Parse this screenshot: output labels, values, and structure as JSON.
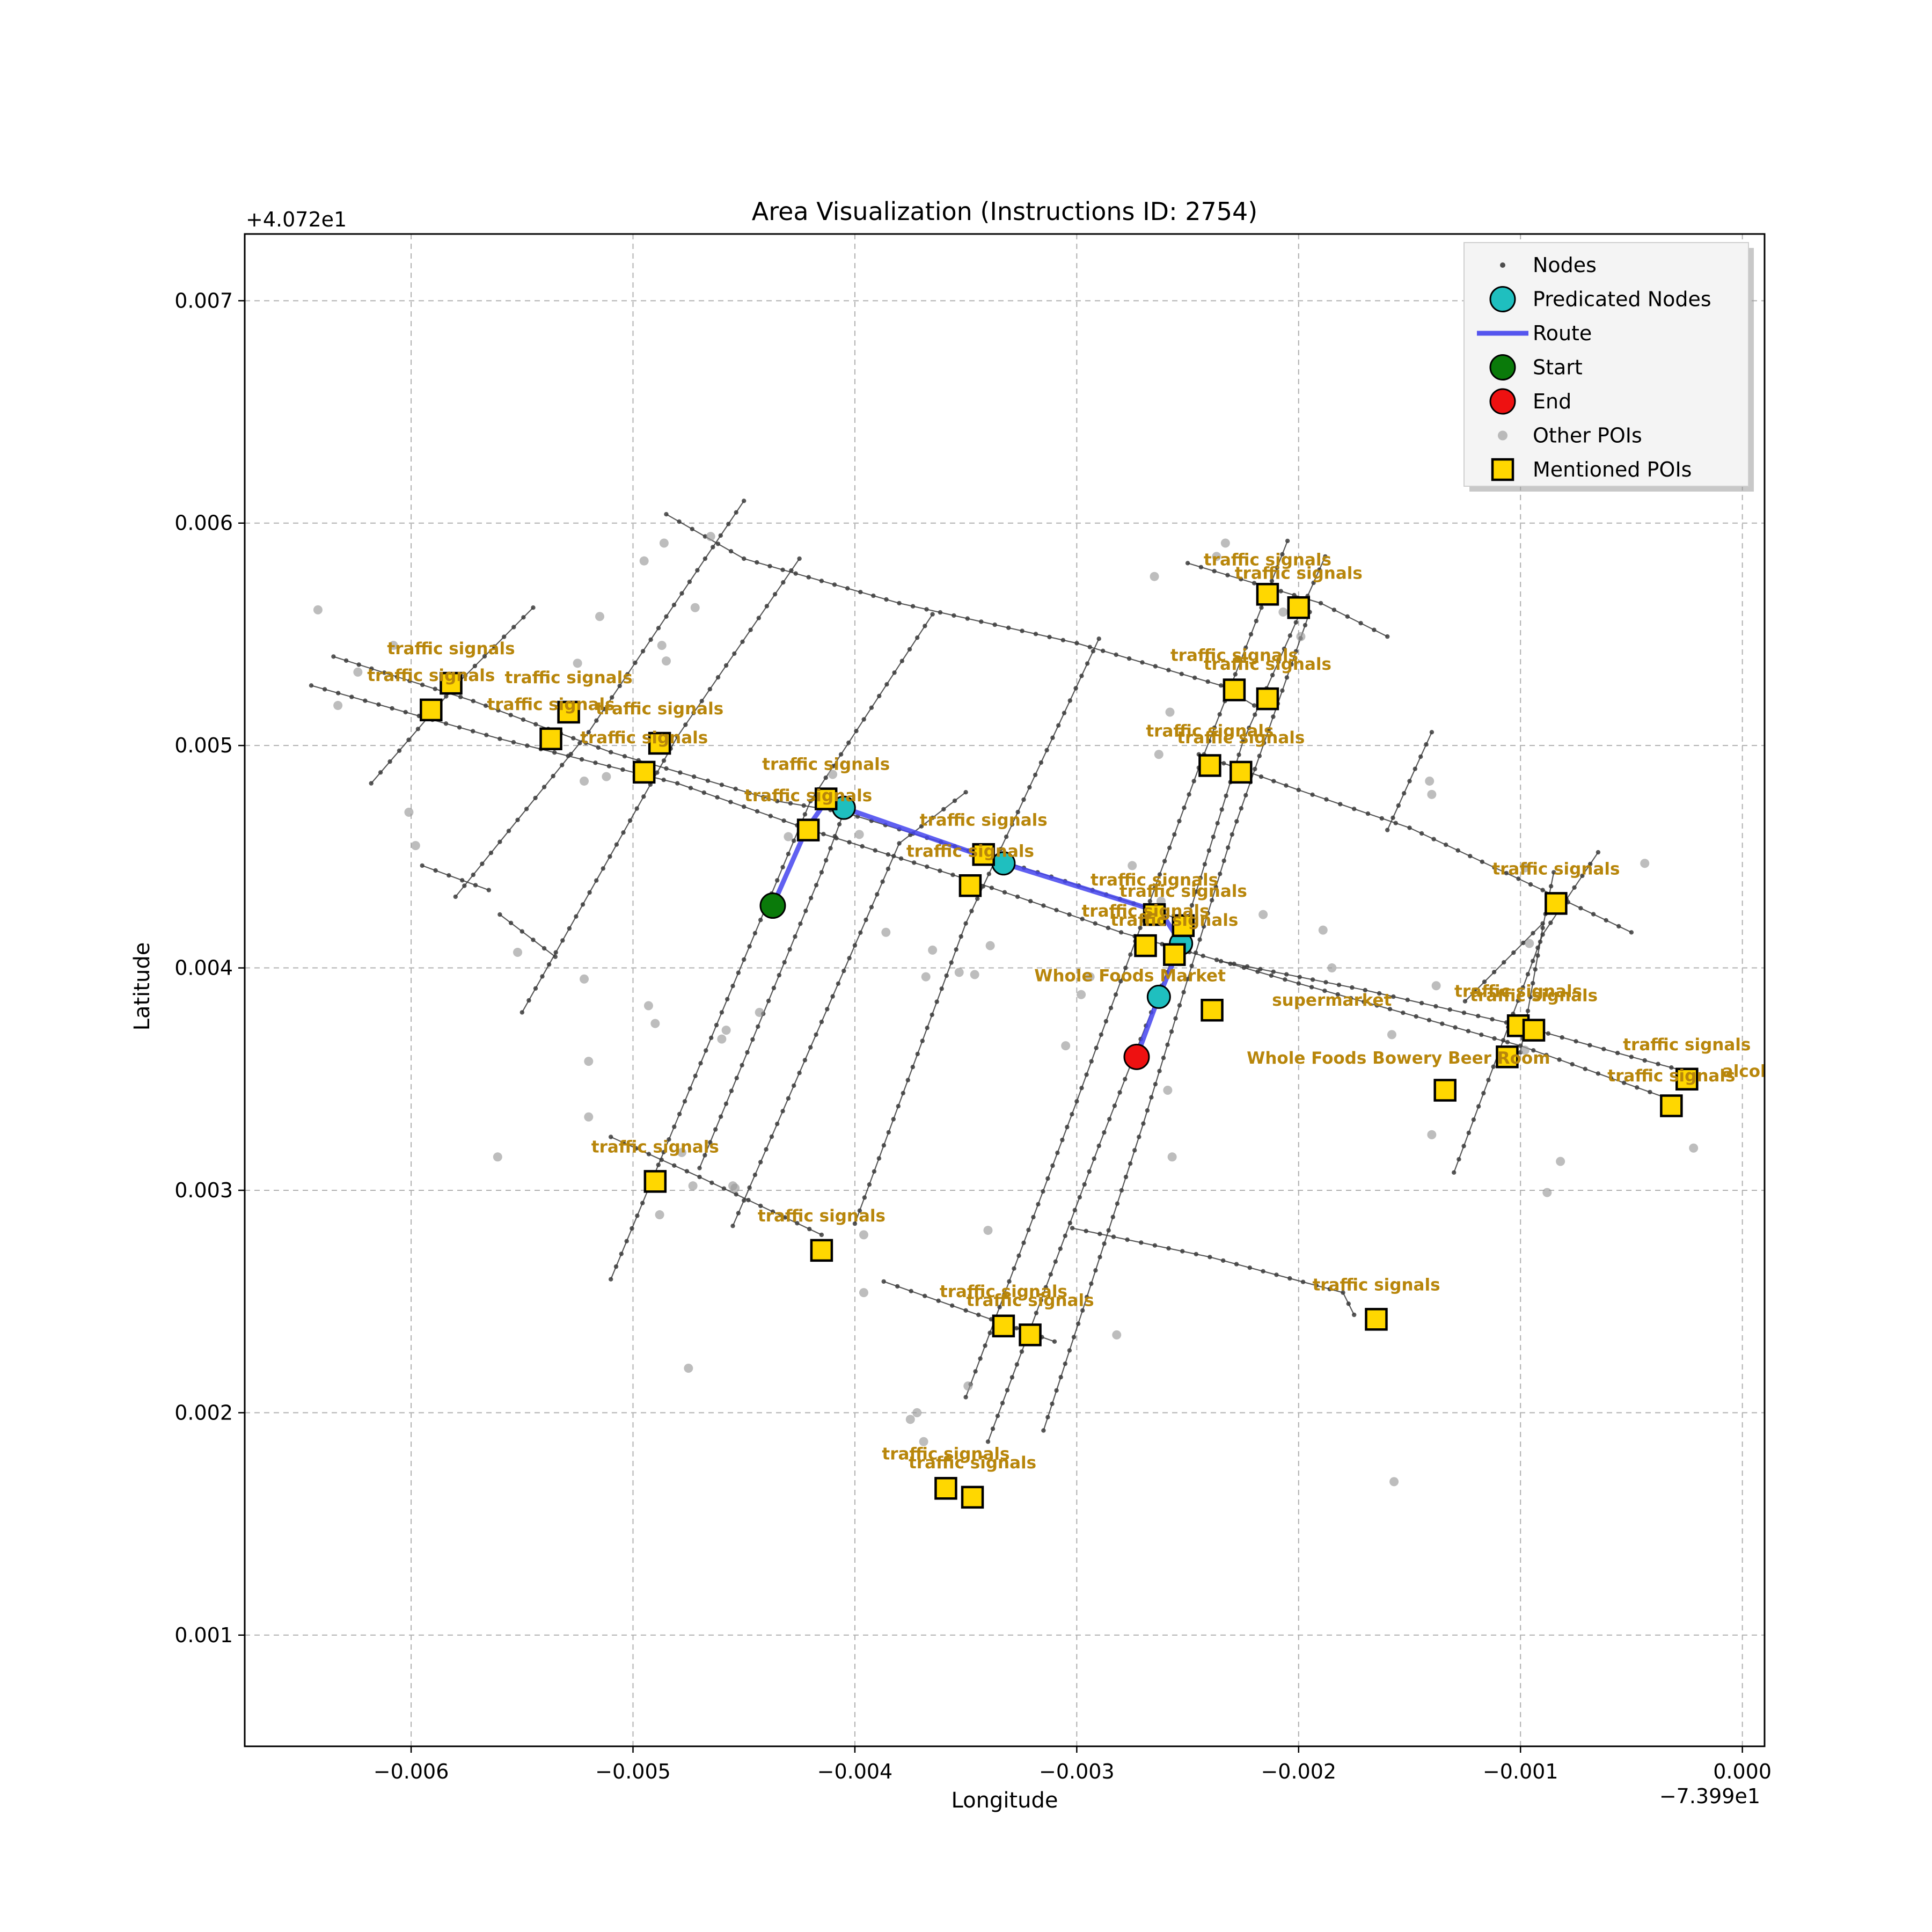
{
  "chart_data": {
    "type": "map",
    "title": "Area Visualization (Instructions ID: 2754)",
    "xlabel": "Longitude",
    "ylabel": "Latitude",
    "x_offset_label": "−7.399e1",
    "y_offset_label": "+4.072e1",
    "xlim": [
      -0.00675,
      0.0001
    ],
    "ylim": [
      0.0005,
      0.0073
    ],
    "x_ticks": [
      -0.006,
      -0.005,
      -0.004,
      -0.003,
      -0.002,
      -0.001,
      0.0
    ],
    "x_tick_labels": [
      "−0.006",
      "−0.005",
      "−0.004",
      "−0.003",
      "−0.002",
      "−0.001",
      "0.000"
    ],
    "y_ticks": [
      0.001,
      0.002,
      0.003,
      0.004,
      0.005,
      0.006,
      0.007
    ],
    "y_tick_labels": [
      "0.001",
      "0.002",
      "0.003",
      "0.004",
      "0.005",
      "0.006",
      "0.007"
    ],
    "grid": true,
    "legend_position": "top-right",
    "legend": [
      {
        "label": "Nodes",
        "marker": "small-dot",
        "color": "#3c3c3c"
      },
      {
        "label": "Predicated Nodes",
        "marker": "circle",
        "color": "#1fbfbf"
      },
      {
        "label": "Route",
        "marker": "line",
        "color": "#4444ee"
      },
      {
        "label": "Start",
        "marker": "circle",
        "color": "#0a7a0a"
      },
      {
        "label": "End",
        "marker": "circle",
        "color": "#ee1111"
      },
      {
        "label": "Other POIs",
        "marker": "small-dot",
        "color": "#9a9a9a"
      },
      {
        "label": "Mentioned POIs",
        "marker": "square",
        "color": "#ffd700"
      }
    ],
    "colors": {
      "nodes": "#3c3c3c",
      "predicated": "#1fbfbf",
      "route": "#4444ee",
      "start": "#0a7a0a",
      "end": "#ee1111",
      "other_poi": "#9a9a9a",
      "mentioned_poi": "#ffd700",
      "poi_label": "#b8860b"
    },
    "streets": [
      [
        [
          -0.00635,
          0.0054
        ],
        [
          -0.00572,
          0.0052
        ],
        [
          -0.0051,
          0.00497
        ],
        [
          -0.00435,
          0.00475
        ],
        [
          -0.00405,
          0.0047
        ],
        [
          -0.0033,
          0.00447
        ],
        [
          -0.00262,
          0.00425
        ],
        [
          -0.0025,
          0.0042
        ]
      ],
      [
        [
          -0.00645,
          0.00527
        ],
        [
          -0.0056,
          0.00503
        ],
        [
          -0.0048,
          0.00483
        ],
        [
          -0.0042,
          0.00462
        ],
        [
          -0.0035,
          0.0044
        ],
        [
          -0.0028,
          0.00416
        ],
        [
          -0.002,
          0.00393
        ],
        [
          -0.001,
          0.00365
        ],
        [
          -0.0003,
          0.0034
        ]
      ],
      [
        [
          -0.00485,
          0.00604
        ],
        [
          -0.0045,
          0.00584
        ],
        [
          -0.0038,
          0.00564
        ],
        [
          -0.003,
          0.00546
        ],
        [
          -0.00235,
          0.00527
        ],
        [
          -0.0022,
          0.00518
        ]
      ],
      [
        [
          -0.0025,
          0.00582
        ],
        [
          -0.0019,
          0.00564
        ],
        [
          -0.0016,
          0.00549
        ]
      ],
      [
        [
          -0.00245,
          0.00496
        ],
        [
          -0.002,
          0.0048
        ],
        [
          -0.0015,
          0.00463
        ],
        [
          -0.0009,
          0.00435
        ],
        [
          -0.0005,
          0.00416
        ]
      ],
      [
        [
          -0.00235,
          0.00403
        ],
        [
          -0.0017,
          0.0039
        ],
        [
          -0.001,
          0.00374
        ],
        [
          -0.0005,
          0.0036
        ],
        [
          -0.0002,
          0.00352
        ]
      ],
      [
        [
          -0.0051,
          0.00324
        ],
        [
          -0.0047,
          0.00306
        ],
        [
          -0.00415,
          0.0028
        ]
      ],
      [
        [
          -0.00387,
          0.00259
        ],
        [
          -0.0035,
          0.00246
        ],
        [
          -0.0031,
          0.00232
        ]
      ],
      [
        [
          -0.00302,
          0.00283
        ],
        [
          -0.0024,
          0.0027
        ],
        [
          -0.0018,
          0.00254
        ],
        [
          -0.00175,
          0.00244
        ]
      ],
      [
        [
          -0.00618,
          0.00483
        ],
        [
          -0.0058,
          0.00527
        ],
        [
          -0.00545,
          0.00562
        ]
      ],
      [
        [
          -0.00595,
          0.00446
        ],
        [
          -0.00565,
          0.00435
        ]
      ],
      [
        [
          -0.0058,
          0.00432
        ],
        [
          -0.0052,
          0.00506
        ],
        [
          -0.0045,
          0.0061
        ]
      ],
      [
        [
          -0.0056,
          0.00424
        ],
        [
          -0.00535,
          0.00405
        ]
      ],
      [
        [
          -0.0055,
          0.0038
        ],
        [
          -0.0048,
          0.00504
        ],
        [
          -0.00425,
          0.00584
        ]
      ],
      [
        [
          -0.0051,
          0.0026
        ],
        [
          -0.0046,
          0.0038
        ],
        [
          -0.0042,
          0.00475
        ],
        [
          -0.00365,
          0.00559
        ]
      ],
      [
        [
          -0.0047,
          0.0031
        ],
        [
          -0.00415,
          0.00443
        ],
        [
          -0.00405,
          0.0047
        ]
      ],
      [
        [
          -0.00455,
          0.00284
        ],
        [
          -0.0038,
          0.00456
        ],
        [
          -0.0035,
          0.00479
        ]
      ],
      [
        [
          -0.004,
          0.00285
        ],
        [
          -0.0035,
          0.0042
        ],
        [
          -0.0029,
          0.00548
        ]
      ],
      [
        [
          -0.0035,
          0.00207
        ],
        [
          -0.003,
          0.0034
        ],
        [
          -0.00245,
          0.0049
        ],
        [
          -0.00205,
          0.00592
        ]
      ],
      [
        [
          -0.0034,
          0.00187
        ],
        [
          -0.0029,
          0.0032
        ],
        [
          -0.0025,
          0.00422
        ],
        [
          -0.00225,
          0.00502
        ],
        [
          -0.00188,
          0.00585
        ]
      ],
      [
        [
          -0.00315,
          0.00192
        ],
        [
          -0.0027,
          0.0033
        ],
        [
          -0.0023,
          0.0046
        ],
        [
          -0.00195,
          0.0056
        ]
      ],
      [
        [
          -0.0016,
          0.00462
        ],
        [
          -0.0014,
          0.00506
        ]
      ],
      [
        [
          -0.0013,
          0.00308
        ],
        [
          -0.0009,
          0.00415
        ],
        [
          -0.00065,
          0.00452
        ]
      ],
      [
        [
          -0.001,
          0.00362
        ],
        [
          -0.0009,
          0.00418
        ],
        [
          -0.00085,
          0.00443
        ]
      ],
      [
        [
          -0.00125,
          0.00385
        ],
        [
          -0.0009,
          0.0042
        ]
      ]
    ],
    "route": [
      [
        -0.00437,
        0.00428
      ],
      [
        -0.00422,
        0.00462
      ],
      [
        -0.00413,
        0.00475
      ],
      [
        -0.00405,
        0.00472
      ],
      [
        -0.00333,
        0.00447
      ],
      [
        -0.00262,
        0.00425
      ],
      [
        -0.00253,
        0.00411
      ],
      [
        -0.00263,
        0.00387
      ],
      [
        -0.00273,
        0.0036
      ]
    ],
    "start": [
      -0.00437,
      0.00428
    ],
    "end": [
      -0.00273,
      0.0036
    ],
    "predicated_nodes": [
      [
        -0.00405,
        0.00472
      ],
      [
        -0.00333,
        0.00447
      ],
      [
        -0.00253,
        0.00411
      ],
      [
        -0.00263,
        0.00387
      ]
    ],
    "other_pois": [
      [
        -0.00642,
        0.00561
      ],
      [
        -0.00633,
        0.00518
      ],
      [
        -0.00624,
        0.00533
      ],
      [
        -0.00598,
        0.00455
      ],
      [
        -0.00601,
        0.0047
      ],
      [
        -0.00608,
        0.00545
      ],
      [
        -0.00561,
        0.00315
      ],
      [
        -0.00552,
        0.00407
      ],
      [
        -0.00525,
        0.00537
      ],
      [
        -0.00522,
        0.00484
      ],
      [
        -0.00522,
        0.00395
      ],
      [
        -0.0052,
        0.00333
      ],
      [
        -0.0052,
        0.00358
      ],
      [
        -0.00515,
        0.00558
      ],
      [
        -0.00512,
        0.00486
      ],
      [
        -0.00495,
        0.00583
      ],
      [
        -0.00493,
        0.00383
      ],
      [
        -0.0049,
        0.00375
      ],
      [
        -0.00488,
        0.00289
      ],
      [
        -0.00487,
        0.00545
      ],
      [
        -0.00486,
        0.00591
      ],
      [
        -0.00485,
        0.00538
      ],
      [
        -0.00478,
        0.00317
      ],
      [
        -0.00475,
        0.0022
      ],
      [
        -0.00473,
        0.00302
      ],
      [
        -0.00472,
        0.00562
      ],
      [
        -0.00465,
        0.00594
      ],
      [
        -0.0046,
        0.00368
      ],
      [
        -0.00458,
        0.00372
      ],
      [
        -0.00455,
        0.00302
      ],
      [
        -0.00454,
        0.00301
      ],
      [
        -0.00443,
        0.0038
      ],
      [
        -0.0043,
        0.00459
      ],
      [
        -0.0041,
        0.00487
      ],
      [
        -0.00398,
        0.0046
      ],
      [
        -0.00396,
        0.00254
      ],
      [
        -0.00396,
        0.0028
      ],
      [
        -0.00386,
        0.00416
      ],
      [
        -0.00375,
        0.00197
      ],
      [
        -0.00372,
        0.002
      ],
      [
        -0.00369,
        0.00187
      ],
      [
        -0.00368,
        0.00396
      ],
      [
        -0.00365,
        0.00408
      ],
      [
        -0.00353,
        0.00398
      ],
      [
        -0.00349,
        0.00212
      ],
      [
        -0.00346,
        0.00397
      ],
      [
        -0.0034,
        0.00282
      ],
      [
        -0.00339,
        0.0041
      ],
      [
        -0.00305,
        0.00365
      ],
      [
        -0.00298,
        0.00388
      ],
      [
        -0.00294,
        0.00396
      ],
      [
        -0.00282,
        0.00235
      ],
      [
        -0.00275,
        0.00446
      ],
      [
        -0.00259,
        0.00345
      ],
      [
        -0.00257,
        0.00315
      ],
      [
        -0.00258,
        0.00515
      ],
      [
        -0.00263,
        0.00496
      ],
      [
        -0.00265,
        0.00576
      ],
      [
        -0.00262,
        0.0043
      ],
      [
        -0.00237,
        0.00585
      ],
      [
        -0.00233,
        0.00591
      ],
      [
        -0.00216,
        0.00424
      ],
      [
        -0.00207,
        0.0056
      ],
      [
        -0.00199,
        0.00549
      ],
      [
        -0.00189,
        0.00417
      ],
      [
        -0.00185,
        0.004
      ],
      [
        -0.00158,
        0.0037
      ],
      [
        -0.00157,
        0.00169
      ],
      [
        -0.00141,
        0.00484
      ],
      [
        -0.0014,
        0.00478
      ],
      [
        -0.0014,
        0.00325
      ],
      [
        -0.00138,
        0.00392
      ],
      [
        -0.00098,
        0.00363
      ],
      [
        -0.00096,
        0.00411
      ],
      [
        -0.00098,
        0.00445
      ],
      [
        -0.00088,
        0.00299
      ],
      [
        -0.00082,
        0.00313
      ],
      [
        -0.00044,
        0.00447
      ],
      [
        -0.00022,
        0.00319
      ]
    ],
    "mentioned_pois": [
      {
        "x": -0.00582,
        "y": 0.00528,
        "label": "traffic signals",
        "label_dx": 0,
        "label_dy": 0.00013
      },
      {
        "x": -0.00591,
        "y": 0.00516,
        "label": "traffic signals",
        "label_dx": 0,
        "label_dy": 0.00013
      },
      {
        "x": -0.00529,
        "y": 0.00515,
        "label": "traffic signals",
        "label_dx": 0,
        "label_dy": 0.00013
      },
      {
        "x": -0.00537,
        "y": 0.00503,
        "label": "traffic signals",
        "label_dx": 0,
        "label_dy": 0.00013
      },
      {
        "x": -0.00488,
        "y": 0.00501,
        "label": "traffic signals",
        "label_dx": 0,
        "label_dy": 0.00013
      },
      {
        "x": -0.00495,
        "y": 0.00488,
        "label": "traffic signals",
        "label_dx": 0,
        "label_dy": 0.00013
      },
      {
        "x": -0.00413,
        "y": 0.00476,
        "label": "traffic signals",
        "label_dx": 0,
        "label_dy": 0.00013
      },
      {
        "x": -0.00421,
        "y": 0.00462,
        "label": "traffic signals",
        "label_dx": 0,
        "label_dy": 0.00013
      },
      {
        "x": -0.00342,
        "y": 0.00451,
        "label": "traffic signals",
        "label_dx": 0,
        "label_dy": 0.00013
      },
      {
        "x": -0.00348,
        "y": 0.00437,
        "label": "traffic signals",
        "label_dx": 0,
        "label_dy": 0.00013
      },
      {
        "x": -0.00265,
        "y": 0.00424,
        "label": "traffic signals",
        "label_dx": 0,
        "label_dy": 0.00013
      },
      {
        "x": -0.00252,
        "y": 0.00419,
        "label": "traffic signals",
        "label_dx": 0,
        "label_dy": 0.00013
      },
      {
        "x": -0.00269,
        "y": 0.0041,
        "label": "traffic signals",
        "label_dx": 0,
        "label_dy": 0.00013
      },
      {
        "x": -0.00256,
        "y": 0.00406,
        "label": "traffic signals",
        "label_dx": 0,
        "label_dy": 0.00013
      },
      {
        "x": -0.00214,
        "y": 0.00568,
        "label": "traffic signals",
        "label_dx": 0,
        "label_dy": 0.00013
      },
      {
        "x": -0.002,
        "y": 0.00562,
        "label": "traffic signals",
        "label_dx": 0,
        "label_dy": 0.00013
      },
      {
        "x": -0.00229,
        "y": 0.00525,
        "label": "traffic signals",
        "label_dx": 0,
        "label_dy": 0.00013
      },
      {
        "x": -0.00214,
        "y": 0.00521,
        "label": "traffic signals",
        "label_dx": 0,
        "label_dy": 0.00013
      },
      {
        "x": -0.0024,
        "y": 0.00491,
        "label": "traffic signals",
        "label_dx": 0,
        "label_dy": 0.00013
      },
      {
        "x": -0.00226,
        "y": 0.00488,
        "label": "traffic signals",
        "label_dx": 0,
        "label_dy": 0.00013
      },
      {
        "x": -0.00084,
        "y": 0.00429,
        "label": "traffic signals",
        "label_dx": 0,
        "label_dy": 0.00013
      },
      {
        "x": -0.00239,
        "y": 0.00381,
        "label": "Whole Foods Market",
        "label_dx": -0.00037,
        "label_dy": 0.00013
      },
      {
        "x": -0.00134,
        "y": 0.00345,
        "label": "supermarket",
        "label_dx": -0.00051,
        "label_dy": 0.00038
      },
      {
        "x": -0.00106,
        "y": 0.0036,
        "label": "Whole Foods Bowery Beer Room",
        "label_dx": -0.00049,
        "label_dy": -3e-05
      },
      {
        "x": -0.00101,
        "y": 0.00374,
        "label": "traffic signals",
        "label_dx": 0,
        "label_dy": 0.00013
      },
      {
        "x": -0.00094,
        "y": 0.00372,
        "label": "traffic signals",
        "label_dx": 0,
        "label_dy": 0.00013
      },
      {
        "x": -0.00032,
        "y": 0.00338,
        "label": "alcohol",
        "label_dx": 0.00038,
        "label_dy": 0.00013
      },
      {
        "x": -0.00025,
        "y": 0.0035,
        "label": "traffic signals",
        "label_dx": 0,
        "label_dy": 0.00013
      },
      {
        "x": -0.00025,
        "y": 0.0035,
        "label": "traffic signals",
        "label_dx": -7e-05,
        "label_dy": -1e-05
      },
      {
        "x": -0.0049,
        "y": 0.00304,
        "label": "traffic signals",
        "label_dx": 0,
        "label_dy": 0.00013
      },
      {
        "x": -0.00415,
        "y": 0.00273,
        "label": "traffic signals",
        "label_dx": 0,
        "label_dy": 0.00013
      },
      {
        "x": -0.00165,
        "y": 0.00242,
        "label": "traffic signals",
        "label_dx": 0,
        "label_dy": 0.00013
      },
      {
        "x": -0.00333,
        "y": 0.00239,
        "label": "traffic signals",
        "label_dx": 0,
        "label_dy": 0.00013
      },
      {
        "x": -0.00321,
        "y": 0.00235,
        "label": "traffic signals",
        "label_dx": 0,
        "label_dy": 0.00013
      },
      {
        "x": -0.00359,
        "y": 0.00166,
        "label": "traffic signals",
        "label_dx": 0,
        "label_dy": 0.00013
      },
      {
        "x": -0.00347,
        "y": 0.00162,
        "label": "traffic signals",
        "label_dx": 0,
        "label_dy": 0.00013
      }
    ]
  }
}
